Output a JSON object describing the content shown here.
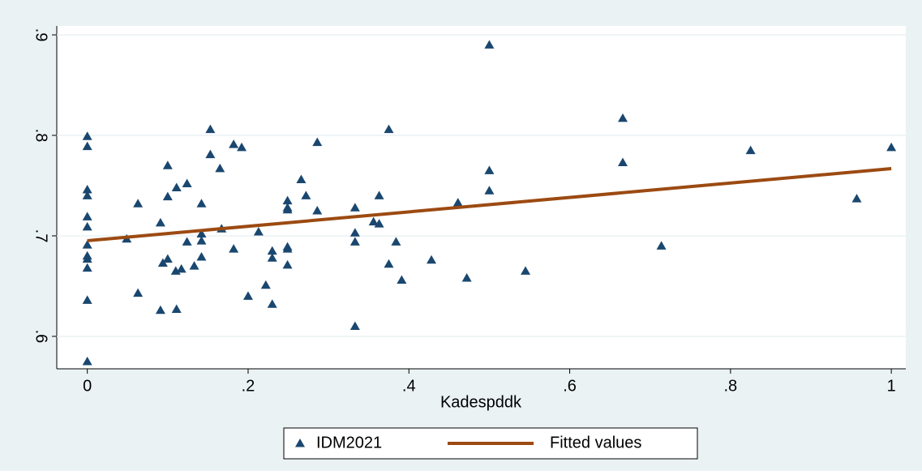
{
  "chart_data": {
    "type": "scatter",
    "x_label": "Kadespddk",
    "xlim": [
      -0.038,
      1.018
    ],
    "ylim": [
      0.5677,
      0.9089
    ],
    "xticks": [
      0,
      {
        "value": 0.2,
        "label": ".2"
      },
      {
        "value": 0.4,
        "label": ".4"
      },
      {
        "value": 0.6,
        "label": ".6"
      },
      {
        "value": 0.8,
        "label": ".8"
      },
      1
    ],
    "yticks": [
      {
        "value": 0.6,
        "label": ".6"
      },
      {
        "value": 0.7,
        "label": ".7"
      },
      {
        "value": 0.8,
        "label": ".8"
      },
      {
        "value": 0.9,
        "label": ".9"
      }
    ],
    "grid": true,
    "series": [
      {
        "name": "IDM2021",
        "type": "scatter",
        "color": "#1a476f",
        "x": [
          0,
          0,
          0,
          0,
          0,
          0,
          0,
          0,
          0,
          0,
          0,
          0,
          0.049,
          0.063,
          0.063,
          0.091,
          0.091,
          0.094,
          0.1,
          0.1,
          0.1,
          0.11,
          0.111,
          0.111,
          0.117,
          0.124,
          0.124,
          0.133,
          0.142,
          0.142,
          0.142,
          0.142,
          0.153,
          0.153,
          0.165,
          0.167,
          0.182,
          0.182,
          0.192,
          0.2,
          0.213,
          0.222,
          0.23,
          0.23,
          0.23,
          0.266,
          0.249,
          0.249,
          0.249,
          0.249,
          0.249,
          0.249,
          0.272,
          0.286,
          0.286,
          0.333,
          0.333,
          0.333,
          0.333,
          0.356,
          0.363,
          0.363,
          0.375,
          0.375,
          0.384,
          0.391,
          0.428,
          0.461,
          0.472,
          0.5,
          0.5,
          0.5,
          0.545,
          0.666,
          0.666,
          0.714,
          0.825,
          0.957,
          1
        ],
        "values": [
          0.575,
          0.636,
          0.668,
          0.677,
          0.68,
          0.691,
          0.709,
          0.719,
          0.74,
          0.746,
          0.789,
          0.799,
          0.697,
          0.643,
          0.732,
          0.626,
          0.713,
          0.673,
          0.677,
          0.739,
          0.77,
          0.665,
          0.627,
          0.748,
          0.667,
          0.752,
          0.694,
          0.67,
          0.702,
          0.679,
          0.695,
          0.732,
          0.806,
          0.781,
          0.767,
          0.707,
          0.687,
          0.791,
          0.788,
          0.64,
          0.704,
          0.651,
          0.685,
          0.678,
          0.632,
          0.756,
          0.735,
          0.728,
          0.726,
          0.689,
          0.687,
          0.671,
          0.74,
          0.793,
          0.725,
          0.728,
          0.703,
          0.694,
          0.61,
          0.714,
          0.74,
          0.712,
          0.806,
          0.672,
          0.694,
          0.656,
          0.676,
          0.733,
          0.658,
          0.89,
          0.765,
          0.745,
          0.665,
          0.817,
          0.773,
          0.69,
          0.785,
          0.737,
          0.788
        ]
      },
      {
        "name": "Fitted values",
        "type": "line",
        "color": "#9c4a12",
        "x": [
          0,
          1
        ],
        "values": [
          0.6952,
          0.7669
        ]
      }
    ],
    "legend": "bottom"
  }
}
